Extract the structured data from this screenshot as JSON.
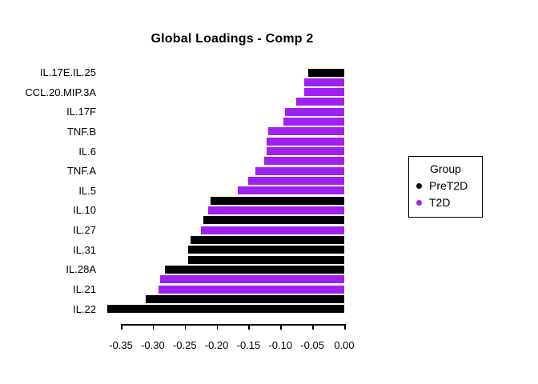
{
  "title": "Global Loadings - Comp 2",
  "colors": {
    "PreT2D": "#000000",
    "T2D": "#A020F0"
  },
  "legend": {
    "title": "Group",
    "position": "right",
    "items": [
      {
        "label": "PreT2D",
        "color": "#000000"
      },
      {
        "label": "T2D",
        "color": "#A020F0"
      }
    ]
  },
  "chart_data": {
    "type": "bar",
    "orientation": "horizontal",
    "title": "Global Loadings - Comp 2",
    "xlabel": "",
    "ylabel": "",
    "xlim": [
      -0.375,
      0.0
    ],
    "grid": false,
    "x_ticks": [
      {
        "value": -0.35,
        "label": "-0.35"
      },
      {
        "value": -0.3,
        "label": "-0.30"
      },
      {
        "value": -0.25,
        "label": "-0.25"
      },
      {
        "value": -0.2,
        "label": "-0.20"
      },
      {
        "value": -0.15,
        "label": "-0.15"
      },
      {
        "value": -0.1,
        "label": "-0.10"
      },
      {
        "value": -0.05,
        "label": "-0.05"
      },
      {
        "value": 0.0,
        "label": "0.00"
      }
    ],
    "bars": [
      {
        "label": "IL.17E.IL.25",
        "group": "PreT2D",
        "value": -0.057
      },
      {
        "label": "",
        "group": "T2D",
        "value": -0.063
      },
      {
        "label": "CCL.20.MIP.3A",
        "group": "T2D",
        "value": -0.063
      },
      {
        "label": "",
        "group": "T2D",
        "value": -0.075
      },
      {
        "label": "IL.17F",
        "group": "T2D",
        "value": -0.093
      },
      {
        "label": "",
        "group": "T2D",
        "value": -0.095
      },
      {
        "label": "TNF.B",
        "group": "T2D",
        "value": -0.119
      },
      {
        "label": "",
        "group": "T2D",
        "value": -0.122
      },
      {
        "label": "IL.6",
        "group": "T2D",
        "value": -0.122
      },
      {
        "label": "",
        "group": "T2D",
        "value": -0.125
      },
      {
        "label": "TNF.A",
        "group": "T2D",
        "value": -0.139
      },
      {
        "label": "",
        "group": "T2D",
        "value": -0.151
      },
      {
        "label": "IL.5",
        "group": "T2D",
        "value": -0.167
      },
      {
        "label": "",
        "group": "PreT2D",
        "value": -0.21
      },
      {
        "label": "IL.10",
        "group": "T2D",
        "value": -0.213
      },
      {
        "label": "",
        "group": "PreT2D",
        "value": -0.221
      },
      {
        "label": "IL.27",
        "group": "T2D",
        "value": -0.225
      },
      {
        "label": "",
        "group": "PreT2D",
        "value": -0.241
      },
      {
        "label": "IL.31",
        "group": "PreT2D",
        "value": -0.245
      },
      {
        "label": "",
        "group": "PreT2D",
        "value": -0.245
      },
      {
        "label": "IL.28A",
        "group": "PreT2D",
        "value": -0.281
      },
      {
        "label": "",
        "group": "T2D",
        "value": -0.289
      },
      {
        "label": "IL.21",
        "group": "T2D",
        "value": -0.291
      },
      {
        "label": "",
        "group": "PreT2D",
        "value": -0.311
      },
      {
        "label": "IL.22",
        "group": "PreT2D",
        "value": -0.372
      }
    ],
    "legend_position": "right"
  }
}
